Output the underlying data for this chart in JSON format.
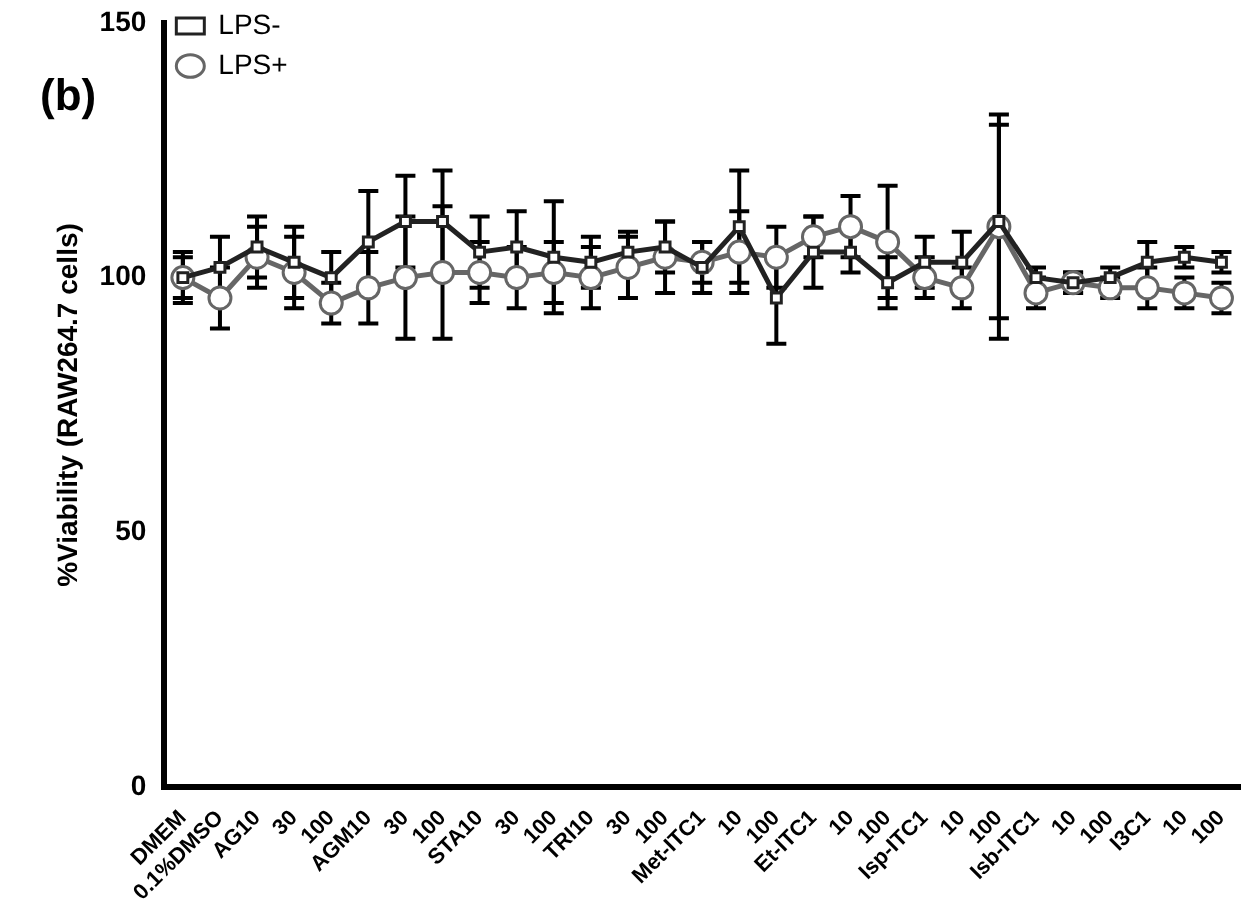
{
  "chart_data": {
    "type": "line",
    "ylabel": "%Viability (RAW264.7 cells)",
    "annotations": [
      "(b)"
    ],
    "categories": [
      "DMEM",
      "0.1%DMSO",
      "AG10",
      "30",
      "100",
      "AGM10",
      "30",
      "100",
      "STA10",
      "30",
      "100",
      "TRI10",
      "30",
      "100",
      "Met-ITC1",
      "10",
      "100",
      "Et-ITC1",
      "10",
      "100",
      "Isp-ITC1",
      "10",
      "100",
      "Isb-ITC1",
      "10",
      "100",
      "I3C1",
      "10",
      "100"
    ],
    "series": [
      {
        "name": "LPS+",
        "color": "#666666",
        "marker": "circle",
        "values": [
          100,
          96,
          104,
          101,
          95,
          98,
          100,
          101,
          101,
          100,
          101,
          100,
          102,
          104,
          103,
          105,
          104,
          108,
          110,
          107,
          100,
          98,
          110,
          97,
          99,
          98,
          98,
          97,
          96
        ],
        "errors": [
          4,
          6,
          6,
          7,
          4,
          7,
          12,
          13,
          6,
          6,
          6,
          6,
          6,
          7,
          4,
          8,
          6,
          4,
          6,
          11,
          4,
          4,
          22,
          3,
          2,
          2,
          4,
          3,
          3
        ]
      },
      {
        "name": "LPS-",
        "color": "#222222",
        "marker": "square",
        "values": [
          100,
          102,
          106,
          103,
          100,
          107,
          111,
          111,
          105,
          106,
          104,
          103,
          105,
          106,
          102,
          110,
          96,
          105,
          105,
          99,
          103,
          103,
          111,
          100,
          99,
          100,
          103,
          104,
          103
        ],
        "errors": [
          5,
          6,
          6,
          7,
          5,
          10,
          9,
          10,
          7,
          7,
          11,
          5,
          4,
          5,
          5,
          11,
          9,
          7,
          4,
          5,
          5,
          6,
          19,
          2,
          2,
          2,
          4,
          2,
          2
        ]
      }
    ],
    "ylim": [
      0,
      150
    ],
    "yticks": [
      0,
      50,
      100,
      150
    ],
    "grid": false,
    "legend": "top left",
    "line_style": "solid"
  }
}
